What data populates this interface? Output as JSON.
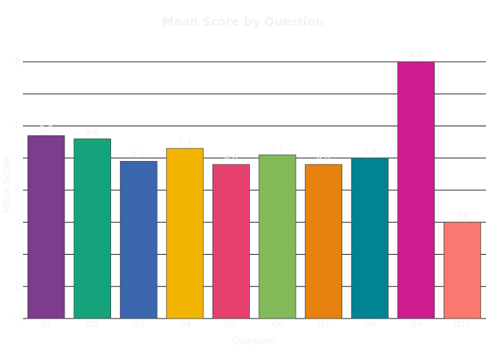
{
  "chart_data": {
    "type": "bar",
    "title": "Mean Score by Question",
    "xlabel": "Question",
    "ylabel": "Mean Score",
    "categories": [
      "Q1",
      "Q2",
      "Q3",
      "Q4",
      "Q5",
      "Q6",
      "Q7",
      "Q8",
      "Q9",
      "Q10"
    ],
    "values": [
      5.7,
      5.6,
      4.9,
      5.3,
      4.8,
      5.1,
      4.8,
      5.0,
      8.0,
      3.0
    ],
    "value_labels": [
      "5.7",
      "5.6",
      "4.9",
      "5.3",
      "4.8",
      "5.1",
      "4.8",
      "5.0",
      "8.0",
      "3.0"
    ],
    "ylim": [
      0,
      8
    ],
    "yticks": [
      0,
      1,
      2,
      3,
      4,
      5,
      6,
      7,
      8
    ],
    "grid": true,
    "legend": "none",
    "colors": [
      "#7d3c8c",
      "#14a37a",
      "#3a67ad",
      "#f2b400",
      "#e6416e",
      "#82ba5a",
      "#e6820e",
      "#008394",
      "#cf1c90",
      "#f87970"
    ]
  }
}
